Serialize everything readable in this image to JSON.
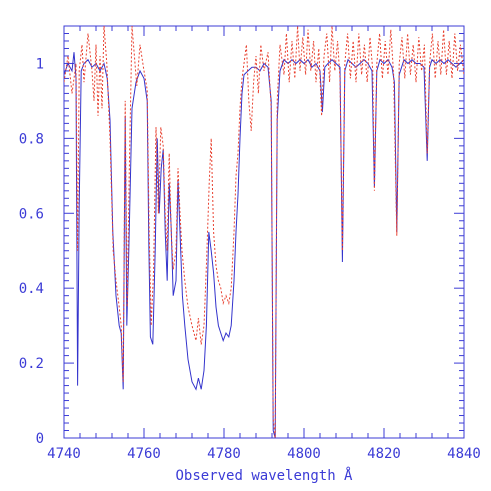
{
  "chart_data": {
    "type": "line",
    "xlabel": "Observed wavelength Å",
    "ylabel": "",
    "xlim": [
      4740,
      4840
    ],
    "ylim": [
      0,
      1.1
    ],
    "x_ticks": [
      4740,
      4760,
      4780,
      4800,
      4820,
      4840
    ],
    "y_ticks": [
      0,
      0.2,
      0.4,
      0.6,
      0.8,
      1
    ],
    "x_tick_labels": [
      "4740",
      "4760",
      "4780",
      "4800",
      "4820",
      "4840"
    ],
    "y_tick_labels": [
      "0",
      "0.2",
      "0.4",
      "0.6",
      "0.8",
      "1"
    ],
    "grid": false,
    "axis_color": "#3b3bd6",
    "series": [
      {
        "style": "solid",
        "color": "#3333cc",
        "points": [
          [
            4740.0,
            0.97
          ],
          [
            4741.0,
            1.0
          ],
          [
            4742.0,
            0.98
          ],
          [
            4742.5,
            1.03
          ],
          [
            4743.0,
            0.96
          ],
          [
            4743.4,
            0.14
          ],
          [
            4743.8,
            0.62
          ],
          [
            4744.3,
            0.98
          ],
          [
            4745.0,
            1.0
          ],
          [
            4746.0,
            1.01
          ],
          [
            4747.0,
            0.99
          ],
          [
            4748.0,
            1.0
          ],
          [
            4749.0,
            0.98
          ],
          [
            4750.0,
            1.0
          ],
          [
            4750.8,
            0.96
          ],
          [
            4751.5,
            0.85
          ],
          [
            4752.2,
            0.55
          ],
          [
            4753.0,
            0.38
          ],
          [
            4753.8,
            0.3
          ],
          [
            4754.3,
            0.28
          ],
          [
            4754.8,
            0.13
          ],
          [
            4755.3,
            0.86
          ],
          [
            4755.7,
            0.3
          ],
          [
            4756.2,
            0.5
          ],
          [
            4757.0,
            0.88
          ],
          [
            4758.0,
            0.95
          ],
          [
            4759.0,
            0.98
          ],
          [
            4760.0,
            0.96
          ],
          [
            4760.8,
            0.9
          ],
          [
            4761.2,
            0.52
          ],
          [
            4761.6,
            0.27
          ],
          [
            4762.2,
            0.25
          ],
          [
            4762.8,
            0.5
          ],
          [
            4763.3,
            0.8
          ],
          [
            4763.8,
            0.6
          ],
          [
            4764.3,
            0.72
          ],
          [
            4764.8,
            0.77
          ],
          [
            4765.3,
            0.55
          ],
          [
            4765.8,
            0.42
          ],
          [
            4766.3,
            0.68
          ],
          [
            4766.8,
            0.56
          ],
          [
            4767.3,
            0.38
          ],
          [
            4768.0,
            0.42
          ],
          [
            4768.5,
            0.69
          ],
          [
            4769.0,
            0.55
          ],
          [
            4769.6,
            0.38
          ],
          [
            4770.2,
            0.3
          ],
          [
            4771.0,
            0.21
          ],
          [
            4772.0,
            0.15
          ],
          [
            4773.0,
            0.13
          ],
          [
            4773.6,
            0.16
          ],
          [
            4774.3,
            0.13
          ],
          [
            4775.0,
            0.18
          ],
          [
            4775.6,
            0.3
          ],
          [
            4776.2,
            0.55
          ],
          [
            4776.8,
            0.5
          ],
          [
            4777.4,
            0.44
          ],
          [
            4778.0,
            0.35
          ],
          [
            4778.6,
            0.3
          ],
          [
            4779.2,
            0.28
          ],
          [
            4779.8,
            0.26
          ],
          [
            4780.5,
            0.28
          ],
          [
            4781.2,
            0.27
          ],
          [
            4781.8,
            0.3
          ],
          [
            4782.5,
            0.42
          ],
          [
            4783.0,
            0.55
          ],
          [
            4783.5,
            0.65
          ],
          [
            4784.0,
            0.8
          ],
          [
            4784.5,
            0.92
          ],
          [
            4785.0,
            0.97
          ],
          [
            4786.0,
            0.98
          ],
          [
            4787.0,
            0.99
          ],
          [
            4788.0,
            0.99
          ],
          [
            4789.0,
            0.98
          ],
          [
            4790.0,
            1.0
          ],
          [
            4791.0,
            0.99
          ],
          [
            4791.8,
            0.9
          ],
          [
            4792.3,
            0.02
          ],
          [
            4792.8,
            0.0
          ],
          [
            4793.3,
            0.85
          ],
          [
            4794.0,
            0.98
          ],
          [
            4795.0,
            1.01
          ],
          [
            4796.0,
            1.0
          ],
          [
            4797.0,
            1.01
          ],
          [
            4798.0,
            1.0
          ],
          [
            4799.0,
            1.01
          ],
          [
            4800.0,
            1.0
          ],
          [
            4801.0,
            1.01
          ],
          [
            4802.0,
            0.99
          ],
          [
            4803.0,
            1.0
          ],
          [
            4804.0,
            0.98
          ],
          [
            4804.6,
            0.87
          ],
          [
            4805.2,
            0.99
          ],
          [
            4806.0,
            1.0
          ],
          [
            4807.0,
            1.01
          ],
          [
            4808.0,
            1.0
          ],
          [
            4809.0,
            0.99
          ],
          [
            4809.6,
            0.47
          ],
          [
            4810.2,
            0.98
          ],
          [
            4811.0,
            1.01
          ],
          [
            4812.0,
            1.0
          ],
          [
            4813.0,
            0.99
          ],
          [
            4814.0,
            1.0
          ],
          [
            4815.0,
            1.01
          ],
          [
            4816.0,
            1.0
          ],
          [
            4817.0,
            0.98
          ],
          [
            4817.6,
            0.67
          ],
          [
            4818.2,
            0.98
          ],
          [
            4819.0,
            1.01
          ],
          [
            4820.0,
            1.0
          ],
          [
            4821.0,
            1.01
          ],
          [
            4822.0,
            0.99
          ],
          [
            4822.6,
            0.95
          ],
          [
            4823.2,
            0.55
          ],
          [
            4823.8,
            0.97
          ],
          [
            4825.0,
            1.01
          ],
          [
            4826.0,
            1.0
          ],
          [
            4827.0,
            1.01
          ],
          [
            4828.0,
            1.0
          ],
          [
            4829.0,
            1.0
          ],
          [
            4830.0,
            0.99
          ],
          [
            4830.8,
            0.74
          ],
          [
            4831.4,
            0.99
          ],
          [
            4832.0,
            1.01
          ],
          [
            4833.0,
            1.0
          ],
          [
            4834.0,
            1.01
          ],
          [
            4835.0,
            1.0
          ],
          [
            4836.0,
            1.01
          ],
          [
            4837.0,
            1.0
          ],
          [
            4838.0,
            0.99
          ],
          [
            4839.0,
            1.0
          ],
          [
            4840.0,
            1.01
          ]
        ]
      },
      {
        "style": "dotted",
        "color": "#e8402f",
        "points": [
          [
            4740.0,
            0.95
          ],
          [
            4741.0,
            1.02
          ],
          [
            4742.0,
            0.92
          ],
          [
            4743.0,
            1.0
          ],
          [
            4743.4,
            0.5
          ],
          [
            4743.8,
            0.98
          ],
          [
            4744.5,
            1.05
          ],
          [
            4745.0,
            0.95
          ],
          [
            4746.0,
            1.08
          ],
          [
            4747.0,
            0.98
          ],
          [
            4747.5,
            0.9
          ],
          [
            4748.0,
            1.05
          ],
          [
            4748.5,
            0.86
          ],
          [
            4749.0,
            1.02
          ],
          [
            4749.5,
            0.88
          ],
          [
            4750.0,
            1.1
          ],
          [
            4750.7,
            1.0
          ],
          [
            4751.5,
            0.8
          ],
          [
            4752.3,
            0.5
          ],
          [
            4753.0,
            0.42
          ],
          [
            4753.8,
            0.35
          ],
          [
            4754.3,
            0.3
          ],
          [
            4754.8,
            0.15
          ],
          [
            4755.3,
            0.9
          ],
          [
            4755.8,
            0.35
          ],
          [
            4756.3,
            0.7
          ],
          [
            4757.0,
            1.1
          ],
          [
            4757.6,
            1.02
          ],
          [
            4758.2,
            0.94
          ],
          [
            4759.0,
            1.05
          ],
          [
            4760.0,
            0.98
          ],
          [
            4760.8,
            0.93
          ],
          [
            4761.3,
            0.55
          ],
          [
            4761.8,
            0.3
          ],
          [
            4762.4,
            0.45
          ],
          [
            4763.0,
            0.83
          ],
          [
            4763.6,
            0.6
          ],
          [
            4764.2,
            0.83
          ],
          [
            4764.8,
            0.78
          ],
          [
            4765.3,
            0.6
          ],
          [
            4765.8,
            0.5
          ],
          [
            4766.3,
            0.76
          ],
          [
            4766.8,
            0.55
          ],
          [
            4767.3,
            0.45
          ],
          [
            4768.0,
            0.5
          ],
          [
            4768.5,
            0.72
          ],
          [
            4769.0,
            0.6
          ],
          [
            4769.5,
            0.5
          ],
          [
            4770.2,
            0.42
          ],
          [
            4771.0,
            0.35
          ],
          [
            4772.0,
            0.3
          ],
          [
            4773.0,
            0.26
          ],
          [
            4773.6,
            0.32
          ],
          [
            4774.3,
            0.25
          ],
          [
            4775.0,
            0.3
          ],
          [
            4775.6,
            0.46
          ],
          [
            4776.3,
            0.68
          ],
          [
            4776.8,
            0.8
          ],
          [
            4777.4,
            0.55
          ],
          [
            4778.0,
            0.46
          ],
          [
            4778.6,
            0.42
          ],
          [
            4779.2,
            0.4
          ],
          [
            4779.8,
            0.36
          ],
          [
            4780.5,
            0.38
          ],
          [
            4781.2,
            0.36
          ],
          [
            4781.8,
            0.4
          ],
          [
            4782.5,
            0.55
          ],
          [
            4783.0,
            0.7
          ],
          [
            4783.5,
            0.76
          ],
          [
            4784.0,
            0.88
          ],
          [
            4784.5,
            0.96
          ],
          [
            4785.0,
            1.0
          ],
          [
            4785.6,
            1.05
          ],
          [
            4786.2,
            0.9
          ],
          [
            4786.8,
            0.82
          ],
          [
            4787.4,
            0.95
          ],
          [
            4788.0,
            1.02
          ],
          [
            4788.6,
            0.92
          ],
          [
            4789.2,
            1.05
          ],
          [
            4790.0,
            0.98
          ],
          [
            4791.0,
            1.03
          ],
          [
            4791.8,
            0.88
          ],
          [
            4792.3,
            0.05
          ],
          [
            4792.8,
            0.0
          ],
          [
            4793.3,
            0.9
          ],
          [
            4794.0,
            1.05
          ],
          [
            4795.0,
            0.97
          ],
          [
            4795.6,
            1.08
          ],
          [
            4796.3,
            0.95
          ],
          [
            4797.0,
            1.06
          ],
          [
            4797.7,
            0.96
          ],
          [
            4798.4,
            1.1
          ],
          [
            4799.0,
            0.98
          ],
          [
            4799.7,
            1.07
          ],
          [
            4800.4,
            0.97
          ],
          [
            4801.0,
            1.09
          ],
          [
            4801.7,
            0.98
          ],
          [
            4802.4,
            1.06
          ],
          [
            4803.0,
            0.95
          ],
          [
            4803.7,
            1.04
          ],
          [
            4804.4,
            0.86
          ],
          [
            4805.0,
            1.02
          ],
          [
            4805.7,
            1.08
          ],
          [
            4806.4,
            0.95
          ],
          [
            4807.0,
            1.1
          ],
          [
            4807.7,
            0.98
          ],
          [
            4808.4,
            1.06
          ],
          [
            4809.0,
            0.96
          ],
          [
            4809.6,
            0.5
          ],
          [
            4810.2,
            1.0
          ],
          [
            4810.9,
            1.08
          ],
          [
            4811.6,
            0.96
          ],
          [
            4812.3,
            1.06
          ],
          [
            4813.0,
            0.95
          ],
          [
            4813.7,
            1.08
          ],
          [
            4814.4,
            0.97
          ],
          [
            4815.1,
            1.05
          ],
          [
            4815.8,
            0.95
          ],
          [
            4816.5,
            1.07
          ],
          [
            4817.2,
            0.98
          ],
          [
            4817.6,
            0.66
          ],
          [
            4818.2,
            1.0
          ],
          [
            4818.9,
            1.08
          ],
          [
            4819.6,
            0.96
          ],
          [
            4820.3,
            1.06
          ],
          [
            4821.0,
            0.97
          ],
          [
            4821.7,
            1.09
          ],
          [
            4822.4,
            0.97
          ],
          [
            4823.2,
            0.54
          ],
          [
            4823.8,
            1.0
          ],
          [
            4824.5,
            1.07
          ],
          [
            4825.2,
            0.96
          ],
          [
            4825.9,
            1.08
          ],
          [
            4826.6,
            0.97
          ],
          [
            4827.3,
            1.05
          ],
          [
            4828.0,
            0.95
          ],
          [
            4828.7,
            1.07
          ],
          [
            4829.4,
            0.98
          ],
          [
            4830.1,
            1.05
          ],
          [
            4830.8,
            0.76
          ],
          [
            4831.4,
            1.0
          ],
          [
            4832.1,
            1.08
          ],
          [
            4832.8,
            0.96
          ],
          [
            4833.5,
            1.06
          ],
          [
            4834.2,
            0.97
          ],
          [
            4834.9,
            1.09
          ],
          [
            4835.6,
            0.97
          ],
          [
            4836.3,
            1.06
          ],
          [
            4837.0,
            0.96
          ],
          [
            4837.7,
            1.08
          ],
          [
            4838.4,
            0.98
          ],
          [
            4839.1,
            1.05
          ],
          [
            4840.0,
            0.97
          ]
        ]
      }
    ]
  }
}
